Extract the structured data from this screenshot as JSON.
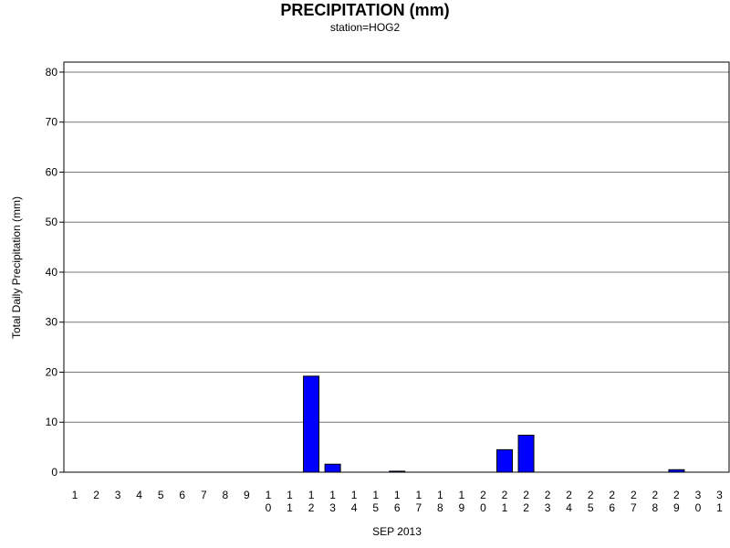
{
  "chart_data": {
    "type": "bar",
    "title": "PRECIPITATION (mm)",
    "subtitle": "station=HOG2",
    "xlabel": "SEP 2013",
    "ylabel": "Total Daily Precipitation (mm)",
    "ylim": [
      0,
      82
    ],
    "yticks": [
      0,
      10,
      20,
      30,
      40,
      50,
      60,
      70,
      80
    ],
    "grid": true,
    "bar_color": "#0000ff",
    "categories": [
      "1",
      "2",
      "3",
      "4",
      "5",
      "6",
      "7",
      "8",
      "9",
      "10",
      "11",
      "12",
      "13",
      "14",
      "15",
      "16",
      "17",
      "18",
      "19",
      "20",
      "21",
      "22",
      "23",
      "24",
      "25",
      "26",
      "27",
      "28",
      "29",
      "30",
      "31"
    ],
    "values": [
      0,
      0,
      0,
      0,
      0,
      0,
      0,
      0,
      0,
      0,
      0,
      19.2,
      1.6,
      0,
      0,
      0.2,
      0,
      0,
      0,
      0,
      4.5,
      7.4,
      0,
      0,
      0,
      0,
      0,
      0,
      0.5,
      0,
      0
    ]
  }
}
